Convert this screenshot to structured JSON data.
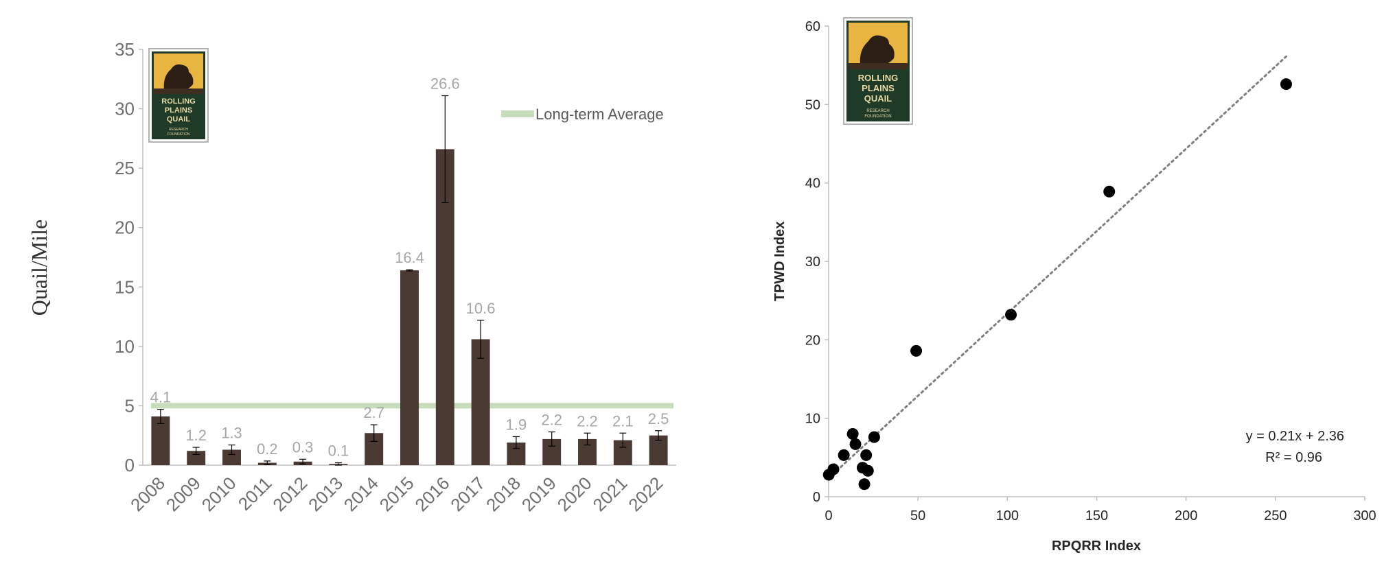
{
  "chart_data": [
    {
      "type": "bar",
      "title": "",
      "xlabel": "",
      "ylabel": "Quail/Mile",
      "ylim": [
        0,
        35
      ],
      "yticks": [
        0,
        5,
        10,
        15,
        20,
        25,
        30,
        35
      ],
      "categories": [
        "2008",
        "2009",
        "2010",
        "2011",
        "2012",
        "2013",
        "2014",
        "2015",
        "2016",
        "2017",
        "2018",
        "2019",
        "2020",
        "2021",
        "2022"
      ],
      "values": [
        4.1,
        1.2,
        1.3,
        0.2,
        0.3,
        0.1,
        2.7,
        16.4,
        26.6,
        10.6,
        1.9,
        2.2,
        2.2,
        2.1,
        2.5
      ],
      "data_labels": [
        "4.1",
        "1.2",
        "1.3",
        "0.2",
        "0.3",
        "0.1",
        "2.7",
        "16.4",
        "26.6",
        "10.6",
        "1.9",
        "2.2",
        "2.2",
        "2.1",
        "2.5"
      ],
      "error": [
        0.6,
        0.3,
        0.4,
        0.15,
        0.2,
        0.1,
        0.7,
        0.05,
        4.5,
        1.6,
        0.5,
        0.6,
        0.5,
        0.6,
        0.4
      ],
      "reference_line": {
        "name": "Long-term Average",
        "value": 5.0,
        "color": "#c6dcba"
      },
      "bar_color": "#4a3a33",
      "legend": {
        "position": "top-right",
        "entries": [
          "Long-term Average"
        ]
      },
      "grid": false
    },
    {
      "type": "scatter",
      "title": "",
      "xlabel": "RPQRR Index",
      "ylabel": "TPWD Index",
      "xlim": [
        0,
        300
      ],
      "ylim": [
        0,
        60
      ],
      "xticks": [
        0,
        50,
        100,
        150,
        200,
        250,
        300
      ],
      "yticks": [
        0,
        10,
        20,
        30,
        40,
        50,
        60
      ],
      "points": [
        {
          "x": 0.1,
          "y": 2.8
        },
        {
          "x": 2.7,
          "y": 3.5
        },
        {
          "x": 8.5,
          "y": 5.3
        },
        {
          "x": 13.5,
          "y": 8.0
        },
        {
          "x": 15,
          "y": 6.7
        },
        {
          "x": 19,
          "y": 3.7
        },
        {
          "x": 20,
          "y": 1.6
        },
        {
          "x": 21,
          "y": 5.3
        },
        {
          "x": 22,
          "y": 3.3
        },
        {
          "x": 25.5,
          "y": 7.6
        },
        {
          "x": 49,
          "y": 18.6
        },
        {
          "x": 102,
          "y": 23.2
        },
        {
          "x": 157,
          "y": 38.9
        },
        {
          "x": 256,
          "y": 52.6
        }
      ],
      "trendline": {
        "slope": 0.21,
        "intercept": 2.36,
        "x_range": [
          0,
          256
        ]
      },
      "annotation": {
        "equation": "y = 0.21x + 2.36",
        "r2": "R² = 0.96"
      },
      "grid": false
    }
  ],
  "logo": {
    "line1": "ROLLING",
    "line2": "PLAINS",
    "line3": "QUAIL",
    "line4": "RESEARCH",
    "line5": "FOUNDATION"
  },
  "colors": {
    "bar": "#4a3a33",
    "average_line": "#c6dcba",
    "tick_label": "#6f6f6f",
    "data_label": "#a6a6a6",
    "point": "#000000",
    "trendline": "#7f7f7f"
  }
}
